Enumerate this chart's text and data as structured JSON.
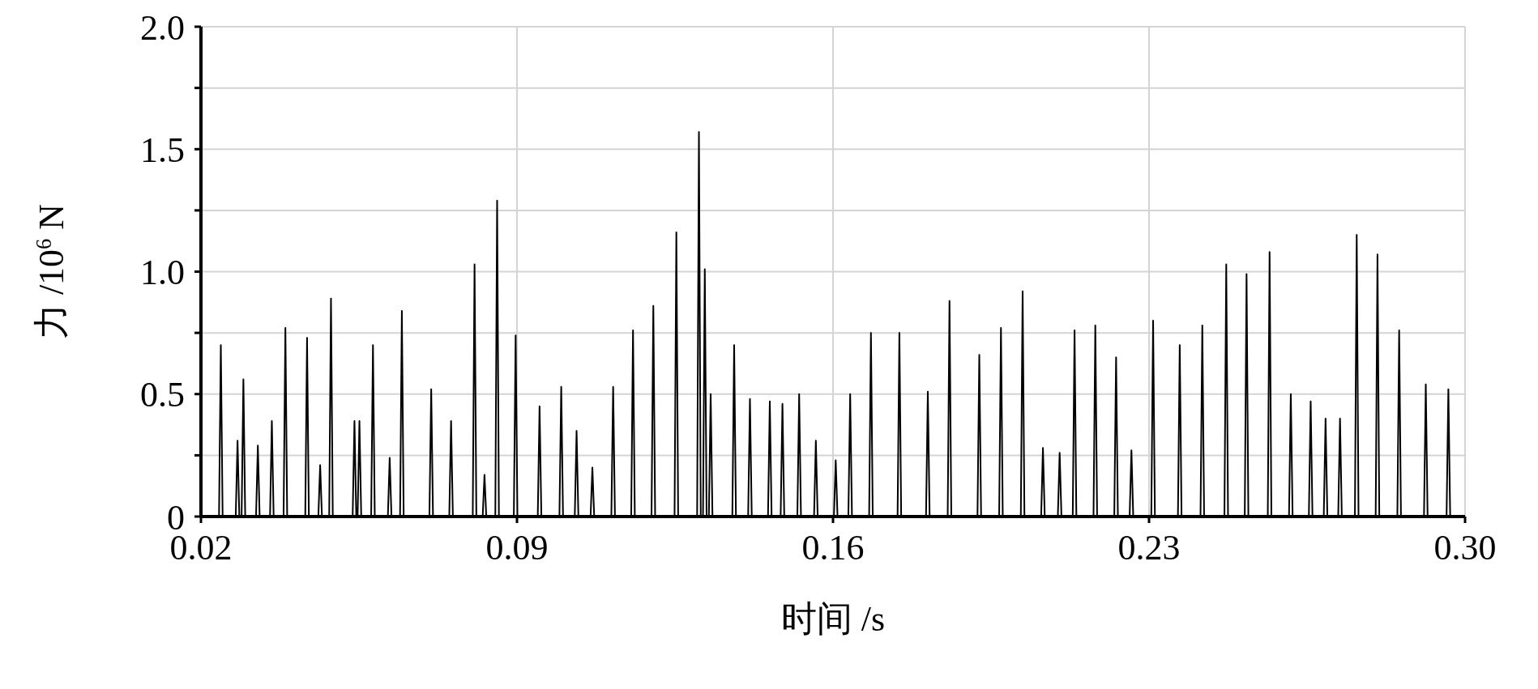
{
  "chart_data": {
    "type": "line",
    "xlabel": "时间 /s",
    "ylabel": "力 /10$^{6}$ N",
    "xlim": [
      0.02,
      0.3
    ],
    "xticks": [
      0.02,
      0.09,
      0.16,
      0.23,
      {
        "value": 0.3,
        "label": "0.30"
      }
    ],
    "ylim": [
      0,
      2
    ],
    "yticks": [
      0,
      {
        "value": 0.25,
        "label": null
      },
      0.5,
      {
        "value": 0.75,
        "label": null
      },
      {
        "value": 1,
        "label": "1.0"
      },
      {
        "value": 1.25,
        "label": null
      },
      1.5,
      {
        "value": 1.75,
        "label": null
      },
      {
        "value": 2,
        "label": "2.0"
      }
    ],
    "grid": true,
    "legend": false,
    "marker": "none",
    "line_style": "solid",
    "x": [
      0.02,
      0.024,
      0.0244,
      0.0248,
      0.0277,
      0.0281,
      0.0285,
      0.029,
      0.0294,
      0.0298,
      0.0322,
      0.0326,
      0.033,
      0.0353,
      0.0357,
      0.0361,
      0.0383,
      0.0387,
      0.0391,
      0.0431,
      0.0435,
      0.0439,
      0.046,
      0.0464,
      0.0468,
      0.0484,
      0.0488,
      0.0492,
      0.0536,
      0.054,
      0.0544,
      0.0547,
      0.0551,
      0.0555,
      0.0577,
      0.0581,
      0.0585,
      0.0614,
      0.0618,
      0.0622,
      0.0641,
      0.0645,
      0.0649,
      0.0706,
      0.071,
      0.0714,
      0.075,
      0.0754,
      0.0758,
      0.0802,
      0.0806,
      0.081,
      0.0824,
      0.0828,
      0.0832,
      0.0852,
      0.0856,
      0.086,
      0.0893,
      0.0897,
      0.0901,
      0.0946,
      0.095,
      0.0954,
      0.0994,
      0.0998,
      0.1002,
      0.1028,
      0.1032,
      0.1036,
      0.1063,
      0.1067,
      0.1071,
      0.1109,
      0.1113,
      0.1117,
      0.1153,
      0.1157,
      0.1161,
      0.1198,
      0.1202,
      0.1206,
      0.1249,
      0.1253,
      0.1257,
      0.1299,
      0.1303,
      0.1307,
      0.1312,
      0.1316,
      0.132,
      0.1325,
      0.1329,
      0.1333,
      0.1377,
      0.1381,
      0.1385,
      0.1412,
      0.1416,
      0.142,
      0.1456,
      0.146,
      0.1464,
      0.1484,
      0.1488,
      0.1492,
      0.1521,
      0.1525,
      0.1529,
      0.1558,
      0.1562,
      0.1566,
      0.1602,
      0.1606,
      0.161,
      0.1634,
      0.1638,
      0.1642,
      0.168,
      0.1684,
      0.1688,
      0.1743,
      0.1747,
      0.1751,
      0.1806,
      0.181,
      0.1814,
      0.1854,
      0.1858,
      0.1862,
      0.192,
      0.1924,
      0.1928,
      0.1968,
      0.1972,
      0.1976,
      0.2016,
      0.202,
      0.2024,
      0.2061,
      0.2065,
      0.2069,
      0.2098,
      0.2102,
      0.2106,
      0.2131,
      0.2135,
      0.2139,
      0.2177,
      0.2181,
      0.2185,
      0.2223,
      0.2227,
      0.2231,
      0.2257,
      0.2261,
      0.2265,
      0.2305,
      0.2309,
      0.2313,
      0.2364,
      0.2368,
      0.2372,
      0.2414,
      0.2418,
      0.2422,
      0.2467,
      0.2471,
      0.2475,
      0.2512,
      0.2516,
      0.252,
      0.2563,
      0.2567,
      0.2571,
      0.261,
      0.2614,
      0.2618,
      0.2654,
      0.2658,
      0.2662,
      0.2687,
      0.2691,
      0.2695,
      0.2719,
      0.2723,
      0.2727,
      0.2756,
      0.276,
      0.2764,
      0.2802,
      0.2806,
      0.281,
      0.285,
      0.2854,
      0.2858,
      0.2909,
      0.2913,
      0.2917,
      0.2959,
      0.2963,
      0.2967,
      0.3
    ],
    "series": [
      {
        "color": "#000000",
        "values": [
          0,
          0,
          0.7,
          0,
          0,
          0.31,
          0,
          0,
          0.56,
          0,
          0,
          0.29,
          0,
          0,
          0.39,
          0,
          0,
          0.77,
          0,
          0,
          0.73,
          0,
          0,
          0.21,
          0,
          0,
          0.89,
          0,
          0,
          0.39,
          0,
          0,
          0.39,
          0,
          0,
          0.7,
          0,
          0,
          0.24,
          0,
          0,
          0.84,
          0,
          0,
          0.52,
          0,
          0,
          0.39,
          0,
          0,
          1.03,
          0,
          0,
          0.17,
          0,
          0,
          1.29,
          0,
          0,
          0.74,
          0,
          0,
          0.45,
          0,
          0,
          0.53,
          0,
          0,
          0.35,
          0,
          0,
          0.2,
          0,
          0,
          0.53,
          0,
          0,
          0.76,
          0,
          0,
          0.86,
          0,
          0,
          1.16,
          0,
          0,
          1.57,
          0,
          0,
          1.01,
          0,
          0,
          0.5,
          0,
          0,
          0.7,
          0,
          0,
          0.48,
          0,
          0,
          0.47,
          0,
          0,
          0.46,
          0,
          0,
          0.5,
          0,
          0,
          0.31,
          0,
          0,
          0.23,
          0,
          0,
          0.5,
          0,
          0,
          0.75,
          0,
          0,
          0.75,
          0,
          0,
          0.51,
          0,
          0,
          0.88,
          0,
          0,
          0.66,
          0,
          0,
          0.77,
          0,
          0,
          0.92,
          0,
          0,
          0.28,
          0,
          0,
          0.26,
          0,
          0,
          0.76,
          0,
          0,
          0.78,
          0,
          0,
          0.65,
          0,
          0,
          0.27,
          0,
          0,
          0.8,
          0,
          0,
          0.7,
          0,
          0,
          0.78,
          0,
          0,
          1.03,
          0,
          0,
          0.99,
          0,
          0,
          1.08,
          0,
          0,
          0.5,
          0,
          0,
          0.47,
          0,
          0,
          0.4,
          0,
          0,
          0.4,
          0,
          0,
          1.15,
          0,
          0,
          1.07,
          0,
          0,
          0.76,
          0,
          0,
          0.54,
          0,
          0,
          0.52,
          0,
          0
        ]
      }
    ]
  }
}
